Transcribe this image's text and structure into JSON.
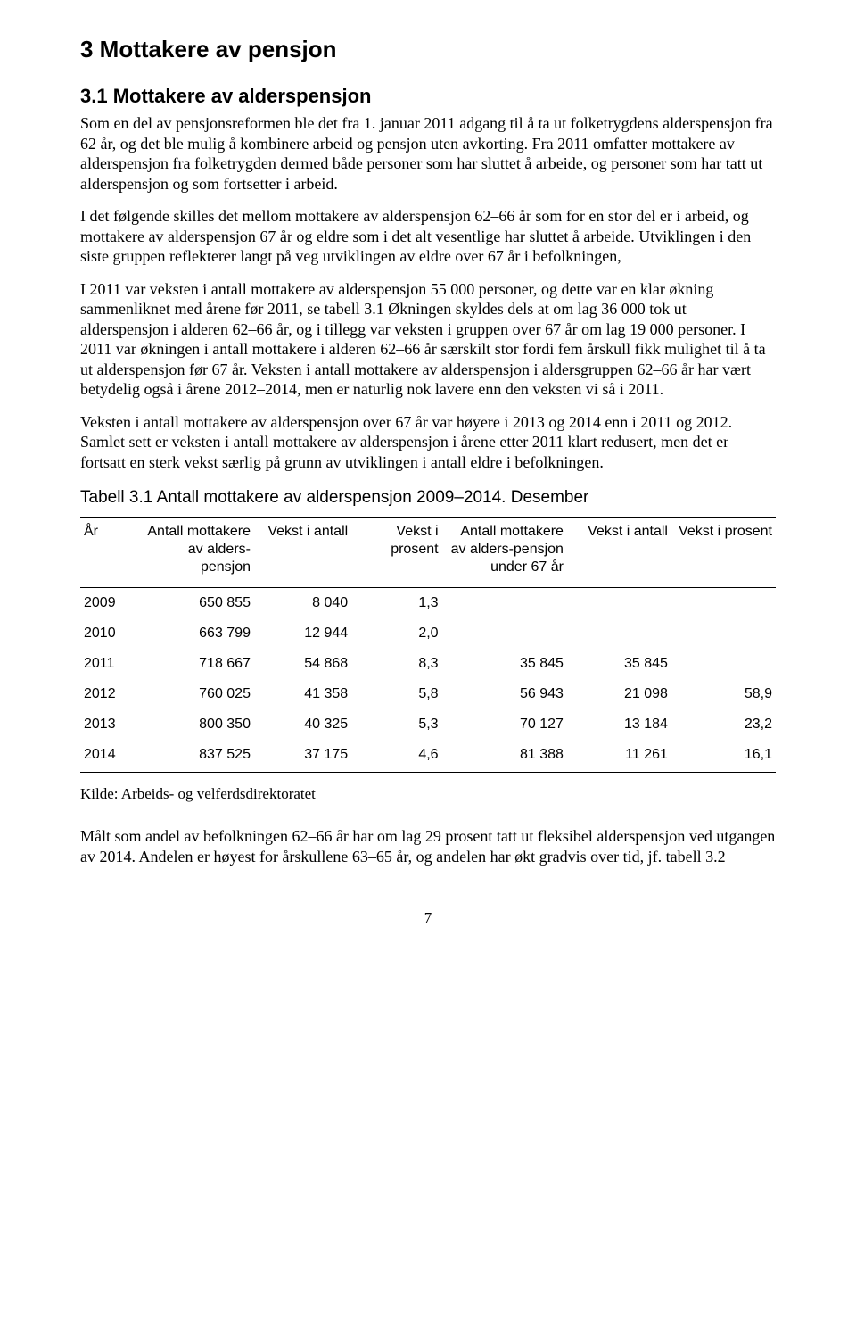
{
  "headings": {
    "h1": "3 Mottakere av pensjon",
    "h2": "3.1 Mottakere av alderspensjon"
  },
  "paragraphs": {
    "p1": "Som en del av pensjonsreformen ble det fra 1. januar 2011 adgang til å ta ut folketrygdens alderspensjon fra 62 år, og det ble mulig å kombinere arbeid og pensjon uten avkorting. Fra 2011 omfatter mottakere av alderspensjon fra folketrygden dermed både personer som har sluttet å arbeide, og personer som har tatt ut alderspensjon og som fortsetter i arbeid.",
    "p2": "I det følgende skilles det mellom mottakere av alderspensjon 62–66 år som for en stor del er i arbeid, og mottakere av alderspensjon 67 år og eldre som i det alt vesentlige har sluttet å arbeide. Utviklingen i den siste gruppen reflekterer langt på veg utviklingen av eldre over 67 år i befolkningen,",
    "p3": "I 2011 var veksten i antall mottakere av alderspensjon 55 000 personer, og dette var en klar økning sammenliknet med årene før 2011, se tabell 3.1 Økningen skyldes dels at om lag 36 000 tok ut alderspensjon i alderen 62–66 år, og i tillegg var veksten i gruppen over 67 år om lag 19 000 personer. I 2011 var økningen i antall mottakere i alderen 62–66 år særskilt stor fordi fem årskull fikk mulighet til å ta ut alderspensjon før 67 år. Veksten i antall mottakere av alderspensjon i aldersgruppen 62–66 år har vært betydelig også i årene 2012–2014, men er naturlig nok lavere enn den veksten vi så i 2011.",
    "p4": "Veksten i antall mottakere av alderspensjon over 67 år var høyere i 2013 og 2014 enn i 2011 og 2012.  Samlet sett er veksten i antall mottakere av alderspensjon i årene etter 2011 klart redusert, men det er fortsatt en sterk vekst særlig på grunn av utviklingen i antall eldre i befolkningen.",
    "p5": "Målt som andel av befolkningen 62–66 år har om lag 29 prosent tatt ut fleksibel alderspensjon ved utgangen av 2014. Andelen er høyest for årskullene 63–65 år, og andelen har økt gradvis over tid, jf. tabell 3.2"
  },
  "table": {
    "title": "Tabell 3.1 Antall mottakere av alderspensjon 2009–2014. Desember",
    "headers": {
      "c0": "År",
      "c1": "Antall mottakere av alders-pensjon",
      "c2": "Vekst i antall",
      "c3": "Vekst i prosent",
      "c4": "Antall mottakere av alders-pensjon under 67 år",
      "c5": "Vekst i antall",
      "c6": "Vekst i prosent"
    },
    "rows": [
      {
        "c0": "2009",
        "c1": "650 855",
        "c2": "8 040",
        "c3": "1,3",
        "c4": "",
        "c5": "",
        "c6": ""
      },
      {
        "c0": "2010",
        "c1": "663 799",
        "c2": "12 944",
        "c3": "2,0",
        "c4": "",
        "c5": "",
        "c6": ""
      },
      {
        "c0": "2011",
        "c1": "718 667",
        "c2": "54 868",
        "c3": "8,3",
        "c4": "35 845",
        "c5": "35 845",
        "c6": ""
      },
      {
        "c0": "2012",
        "c1": "760 025",
        "c2": "41 358",
        "c3": "5,8",
        "c4": "56 943",
        "c5": "21 098",
        "c6": "58,9"
      },
      {
        "c0": "2013",
        "c1": "800 350",
        "c2": "40 325",
        "c3": "5,3",
        "c4": "70 127",
        "c5": "13 184",
        "c6": "23,2"
      },
      {
        "c0": "2014",
        "c1": "837 525",
        "c2": "37 175",
        "c3": "4,6",
        "c4": "81 388",
        "c5": "11 261",
        "c6": "16,1"
      }
    ],
    "source": "Kilde: Arbeids- og velferdsdirektoratet"
  },
  "page_number": "7"
}
